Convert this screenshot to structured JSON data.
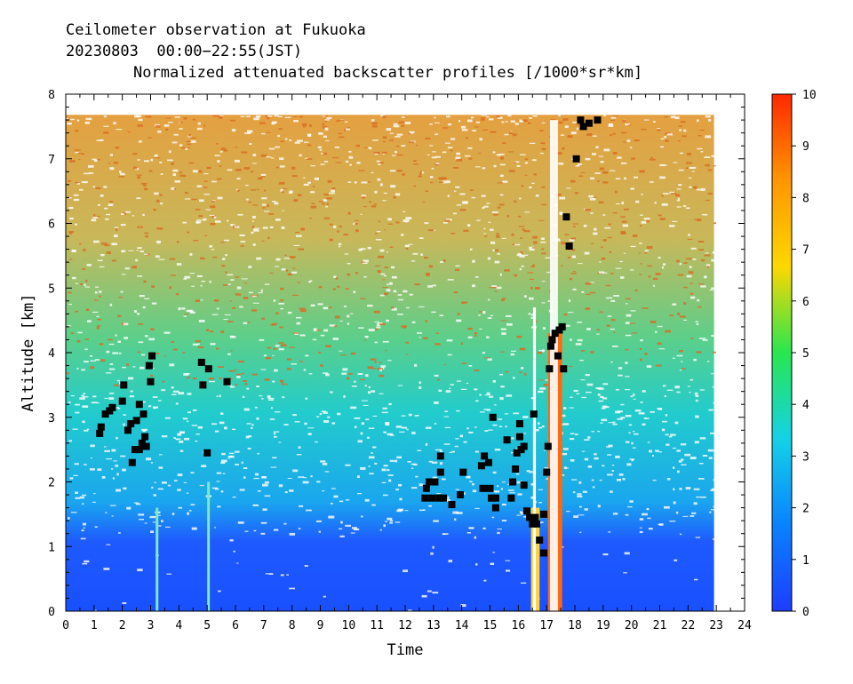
{
  "header": {
    "line1": "Ceilometer observation at Fukuoka",
    "line2": "20230803  00:00−22:55(JST)",
    "line3": "Normalized attenuated backscatter profiles [/1000*sr*km]"
  },
  "chart_data": {
    "type": "heatmap",
    "title": "Normalized attenuated backscatter profiles [/1000*sr*km]",
    "xlabel": "Time",
    "ylabel": "Altitude [km]",
    "xlim": [
      0,
      24
    ],
    "ylim": [
      0,
      8
    ],
    "x_ticks": [
      "0",
      "1",
      "2",
      "3",
      "4",
      "5",
      "6",
      "7",
      "8",
      "9",
      "10",
      "11",
      "12",
      "13",
      "14",
      "15",
      "16",
      "17",
      "18",
      "19",
      "20",
      "21",
      "22",
      "23",
      "24"
    ],
    "y_ticks": [
      "0",
      "1",
      "2",
      "3",
      "4",
      "5",
      "6",
      "7",
      "8"
    ],
    "data_extent": {
      "time_end": 22.92,
      "altitude_top": 7.68
    },
    "colorbar": {
      "range": [
        0,
        10
      ],
      "ticks": [
        "0",
        "1",
        "2",
        "3",
        "4",
        "5",
        "6",
        "7",
        "8",
        "9",
        "10"
      ],
      "colors": [
        "#1e3cff",
        "#0a82ff",
        "#14d2e6",
        "#28e650",
        "#ffd700",
        "#ff9600",
        "#ff2800"
      ]
    },
    "cloud_base_points": [
      [
        1.2,
        2.75
      ],
      [
        1.25,
        2.85
      ],
      [
        1.4,
        3.05
      ],
      [
        1.55,
        3.1
      ],
      [
        1.65,
        3.15
      ],
      [
        2.0,
        3.25
      ],
      [
        2.05,
        3.5
      ],
      [
        2.2,
        2.8
      ],
      [
        2.3,
        2.9
      ],
      [
        2.35,
        2.3
      ],
      [
        2.45,
        2.5
      ],
      [
        2.5,
        2.95
      ],
      [
        2.6,
        3.2
      ],
      [
        2.6,
        2.5
      ],
      [
        2.7,
        2.6
      ],
      [
        2.75,
        3.05
      ],
      [
        2.8,
        2.7
      ],
      [
        2.85,
        2.55
      ],
      [
        2.95,
        3.8
      ],
      [
        3.0,
        3.55
      ],
      [
        3.05,
        3.95
      ],
      [
        4.8,
        3.85
      ],
      [
        4.85,
        3.5
      ],
      [
        5.0,
        2.45
      ],
      [
        5.05,
        3.75
      ],
      [
        5.7,
        3.55
      ],
      [
        12.7,
        1.75
      ],
      [
        12.75,
        1.9
      ],
      [
        12.85,
        2.0
      ],
      [
        12.95,
        1.75
      ],
      [
        13.05,
        2.0
      ],
      [
        13.2,
        1.75
      ],
      [
        13.25,
        2.15
      ],
      [
        13.25,
        2.4
      ],
      [
        13.35,
        1.75
      ],
      [
        13.65,
        1.65
      ],
      [
        13.95,
        1.8
      ],
      [
        14.05,
        2.15
      ],
      [
        14.7,
        2.25
      ],
      [
        14.75,
        1.9
      ],
      [
        14.8,
        2.4
      ],
      [
        14.95,
        2.3
      ],
      [
        15.0,
        1.9
      ],
      [
        15.05,
        1.75
      ],
      [
        15.1,
        3.0
      ],
      [
        15.2,
        1.6
      ],
      [
        15.2,
        1.75
      ],
      [
        15.6,
        2.65
      ],
      [
        15.75,
        1.75
      ],
      [
        15.8,
        2.0
      ],
      [
        15.9,
        2.2
      ],
      [
        15.95,
        2.45
      ],
      [
        16.05,
        2.9
      ],
      [
        16.05,
        2.7
      ],
      [
        16.1,
        2.5
      ],
      [
        16.2,
        2.55
      ],
      [
        16.2,
        1.95
      ],
      [
        16.3,
        1.55
      ],
      [
        16.4,
        1.45
      ],
      [
        16.5,
        1.35
      ],
      [
        16.55,
        3.05
      ],
      [
        16.6,
        1.45
      ],
      [
        16.65,
        1.35
      ],
      [
        16.75,
        1.1
      ],
      [
        16.9,
        0.9
      ],
      [
        16.9,
        1.5
      ],
      [
        17.0,
        2.15
      ],
      [
        17.05,
        2.55
      ],
      [
        17.1,
        3.75
      ],
      [
        17.15,
        4.1
      ],
      [
        17.2,
        4.2
      ],
      [
        17.3,
        4.3
      ],
      [
        17.4,
        3.95
      ],
      [
        17.45,
        4.35
      ],
      [
        17.55,
        4.4
      ],
      [
        17.6,
        3.75
      ],
      [
        17.7,
        6.1
      ],
      [
        17.8,
        5.65
      ],
      [
        18.05,
        7.0
      ],
      [
        18.2,
        7.6
      ],
      [
        18.3,
        7.5
      ],
      [
        18.5,
        7.55
      ],
      [
        18.8,
        7.6
      ]
    ]
  }
}
